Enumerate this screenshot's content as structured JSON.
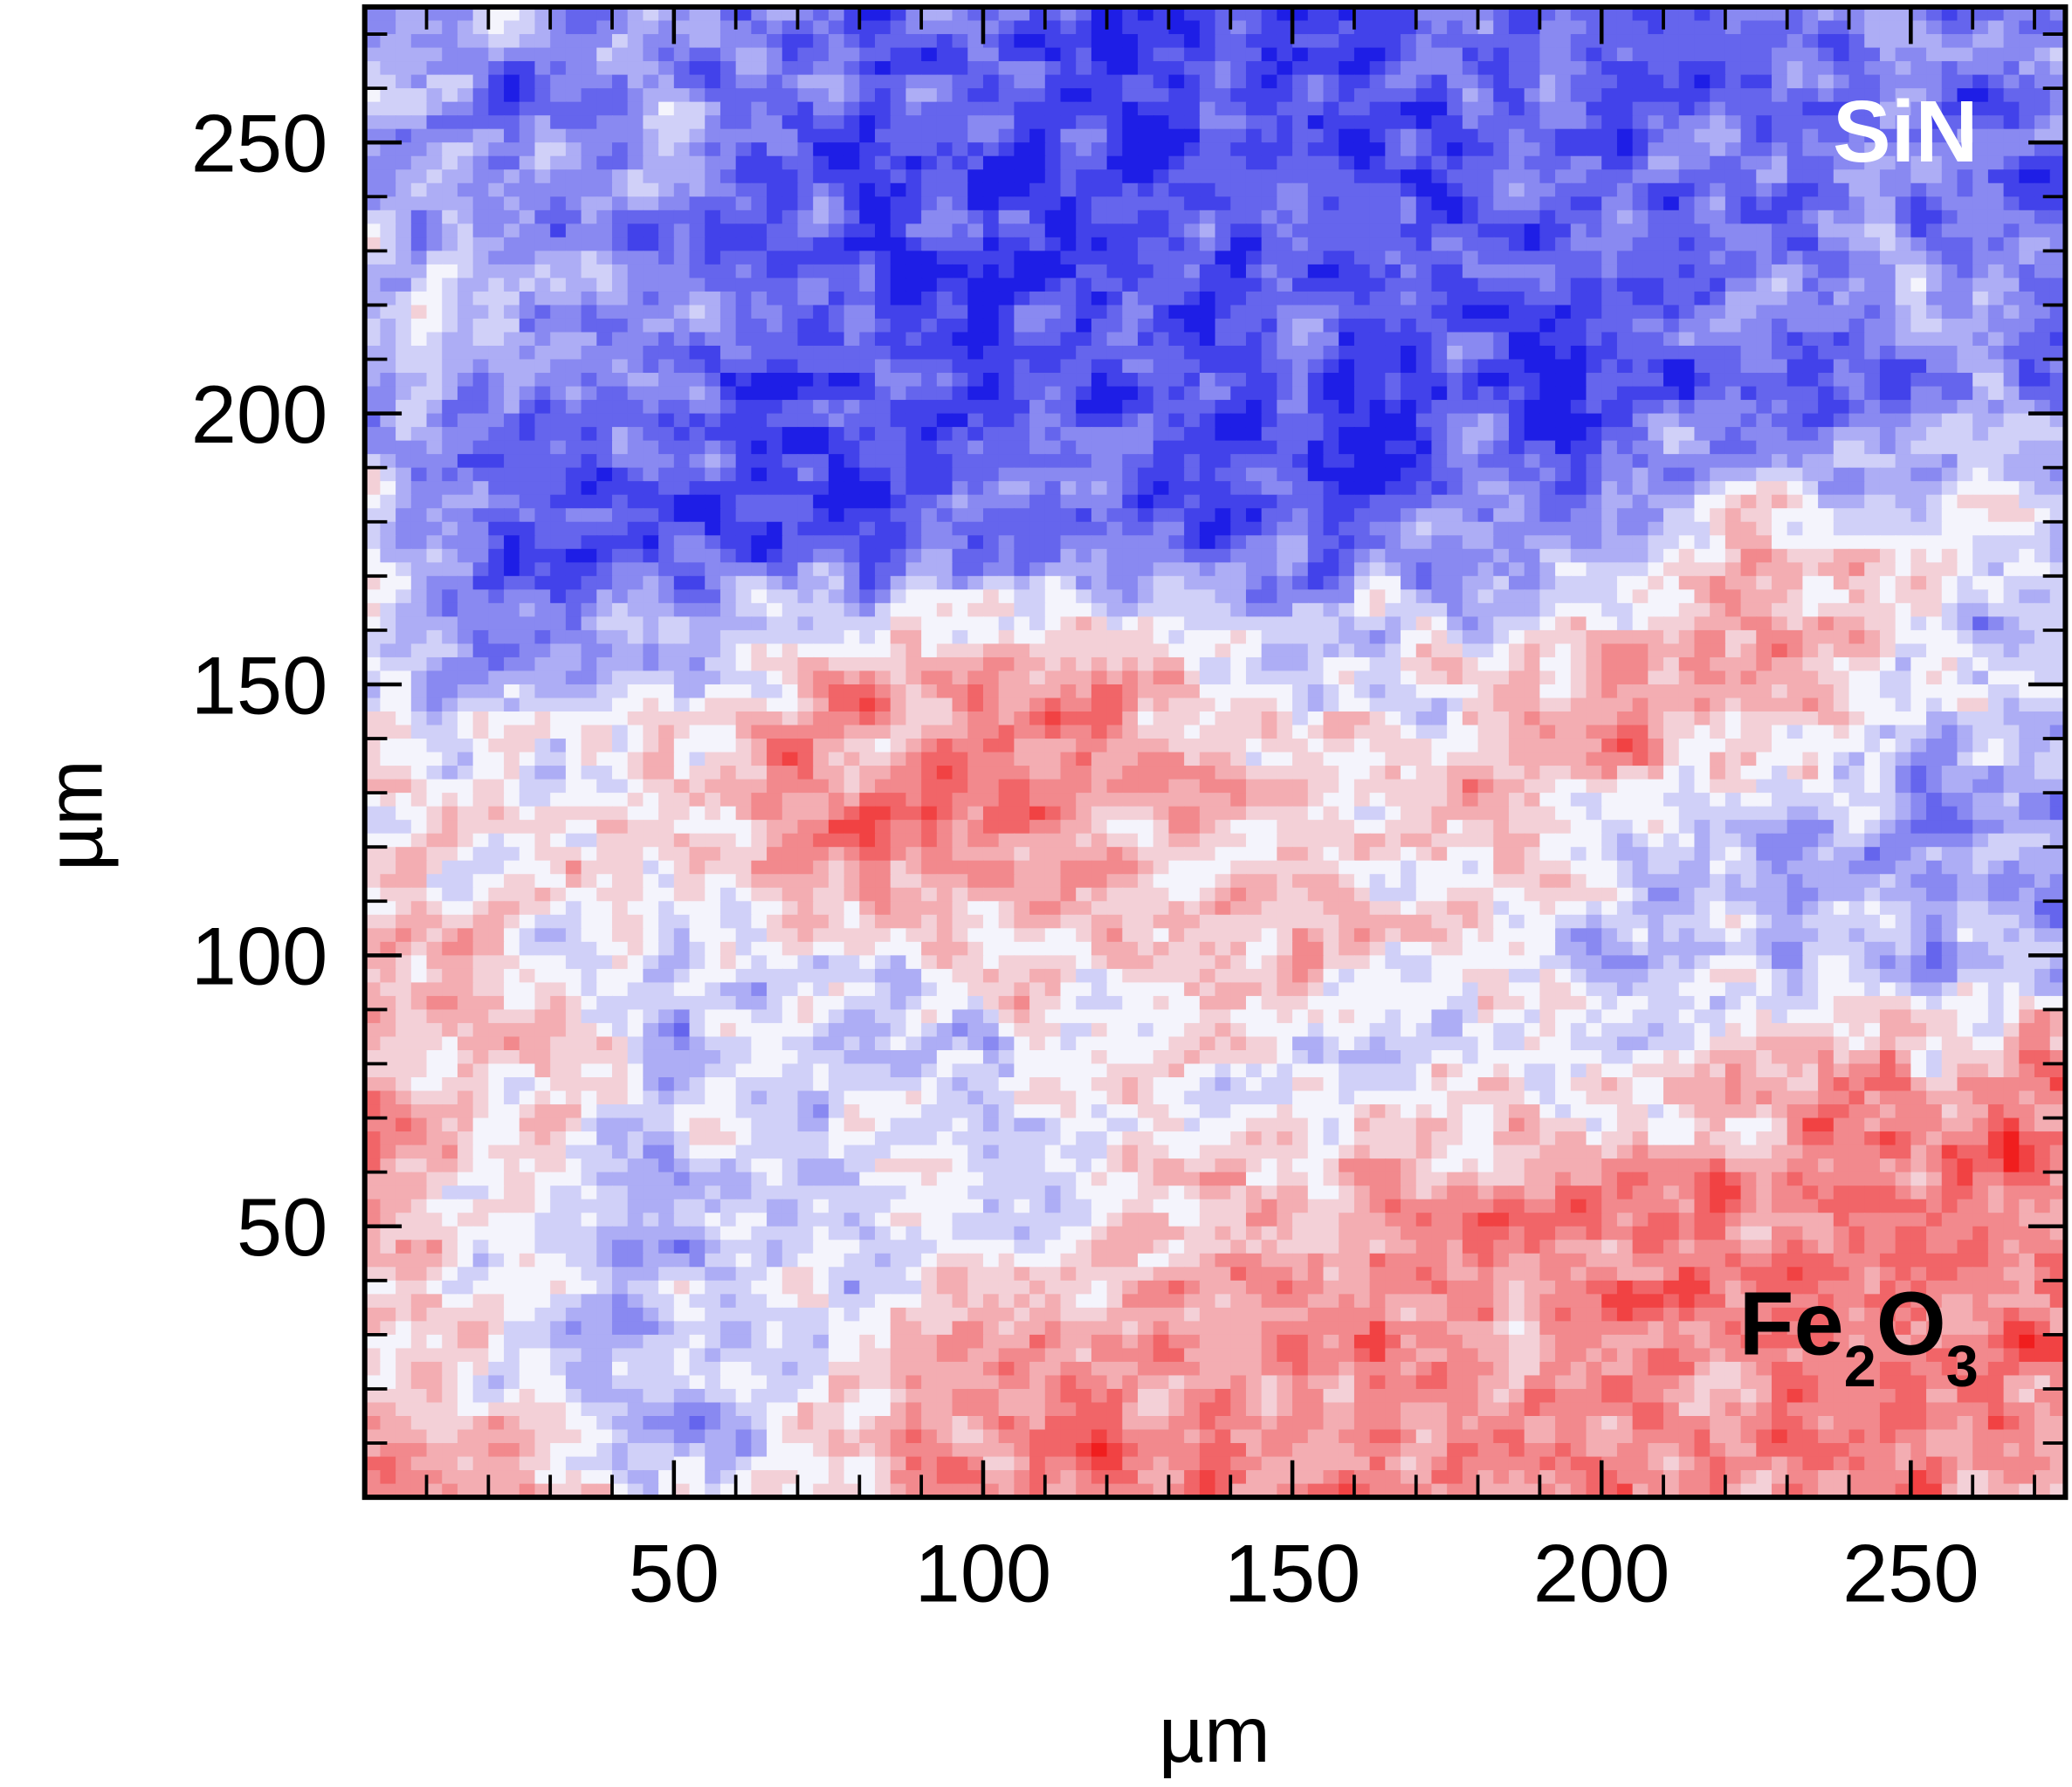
{
  "chart_data": {
    "type": "heatmap",
    "title": "",
    "xlabel": "µm",
    "ylabel": "µm",
    "xlim": [
      0,
      275
    ],
    "ylim": [
      0,
      275
    ],
    "xticks": [
      50,
      100,
      150,
      200,
      250
    ],
    "yticks": [
      50,
      100,
      150,
      200,
      250
    ],
    "x_tick_labels": [
      "50",
      "100",
      "150",
      "200",
      "250"
    ],
    "y_tick_labels": [
      "50",
      "100",
      "150",
      "200",
      "250"
    ],
    "colormap": {
      "negative": "#1e1ee6",
      "zero": "#f4f4fc",
      "positive": "#f01e1e"
    },
    "value_scale_note": "approximate relative composition: -1 = SiN (blue), +1 = Fe2O3 (red)",
    "grid_x": [
      0,
      25,
      50,
      75,
      100,
      125,
      150,
      175,
      200,
      225,
      250,
      275
    ],
    "grid_y": [
      275,
      250,
      225,
      200,
      175,
      150,
      125,
      100,
      75,
      50,
      25,
      0
    ],
    "grid_values": [
      [
        -0.5,
        -0.5,
        -0.5,
        -0.6,
        -0.7,
        -0.7,
        -0.7,
        -0.7,
        -0.7,
        -0.6,
        -0.6,
        -0.6
      ],
      [
        -0.4,
        -0.4,
        -0.5,
        -0.7,
        -0.8,
        -0.8,
        -0.7,
        -0.7,
        -0.7,
        -0.6,
        -0.6,
        -0.6
      ],
      [
        -0.3,
        -0.3,
        -0.5,
        -0.8,
        -0.9,
        -0.8,
        -0.7,
        -0.7,
        -0.7,
        -0.6,
        -0.5,
        -0.5
      ],
      [
        -0.3,
        -0.6,
        -0.7,
        -0.8,
        -0.8,
        -0.8,
        -0.8,
        -0.8,
        -0.8,
        -0.6,
        -0.5,
        -0.5
      ],
      [
        -0.2,
        -0.7,
        -0.7,
        -0.7,
        -0.6,
        -0.6,
        -0.6,
        -0.5,
        -0.2,
        0.2,
        0.1,
        -0.2
      ],
      [
        -0.2,
        -0.3,
        -0.1,
        0.4,
        0.5,
        0.4,
        0.0,
        0.1,
        0.4,
        0.4,
        -0.1,
        -0.2
      ],
      [
        0.0,
        0.1,
        0.3,
        0.6,
        0.6,
        0.4,
        0.2,
        0.3,
        0.2,
        -0.2,
        -0.4,
        -0.4
      ],
      [
        0.2,
        0.0,
        -0.2,
        0.0,
        0.1,
        0.2,
        0.2,
        0.0,
        -0.3,
        -0.3,
        -0.3,
        -0.3
      ],
      [
        0.5,
        0.2,
        -0.2,
        -0.2,
        -0.1,
        0.0,
        0.0,
        0.0,
        0.1,
        0.3,
        0.5,
        0.5
      ],
      [
        0.3,
        0.0,
        -0.3,
        -0.2,
        -0.1,
        0.1,
        0.4,
        0.5,
        0.6,
        0.6,
        0.6,
        0.6
      ],
      [
        0.3,
        0.0,
        -0.3,
        -0.1,
        0.4,
        0.5,
        0.5,
        0.5,
        0.5,
        0.5,
        0.5,
        0.5
      ],
      [
        0.6,
        0.3,
        -0.2,
        0.2,
        0.5,
        0.5,
        0.5,
        0.5,
        0.5,
        0.5,
        0.5,
        0.5
      ]
    ],
    "annotations": [
      {
        "text": "SiN",
        "location": "top-right",
        "color": "#ffffff"
      },
      {
        "text": "Fe",
        "sub1": "2",
        "text2": "O",
        "sub2": "3",
        "location": "bottom-right",
        "color": "#000000"
      }
    ],
    "legend": "none",
    "grid": false
  }
}
